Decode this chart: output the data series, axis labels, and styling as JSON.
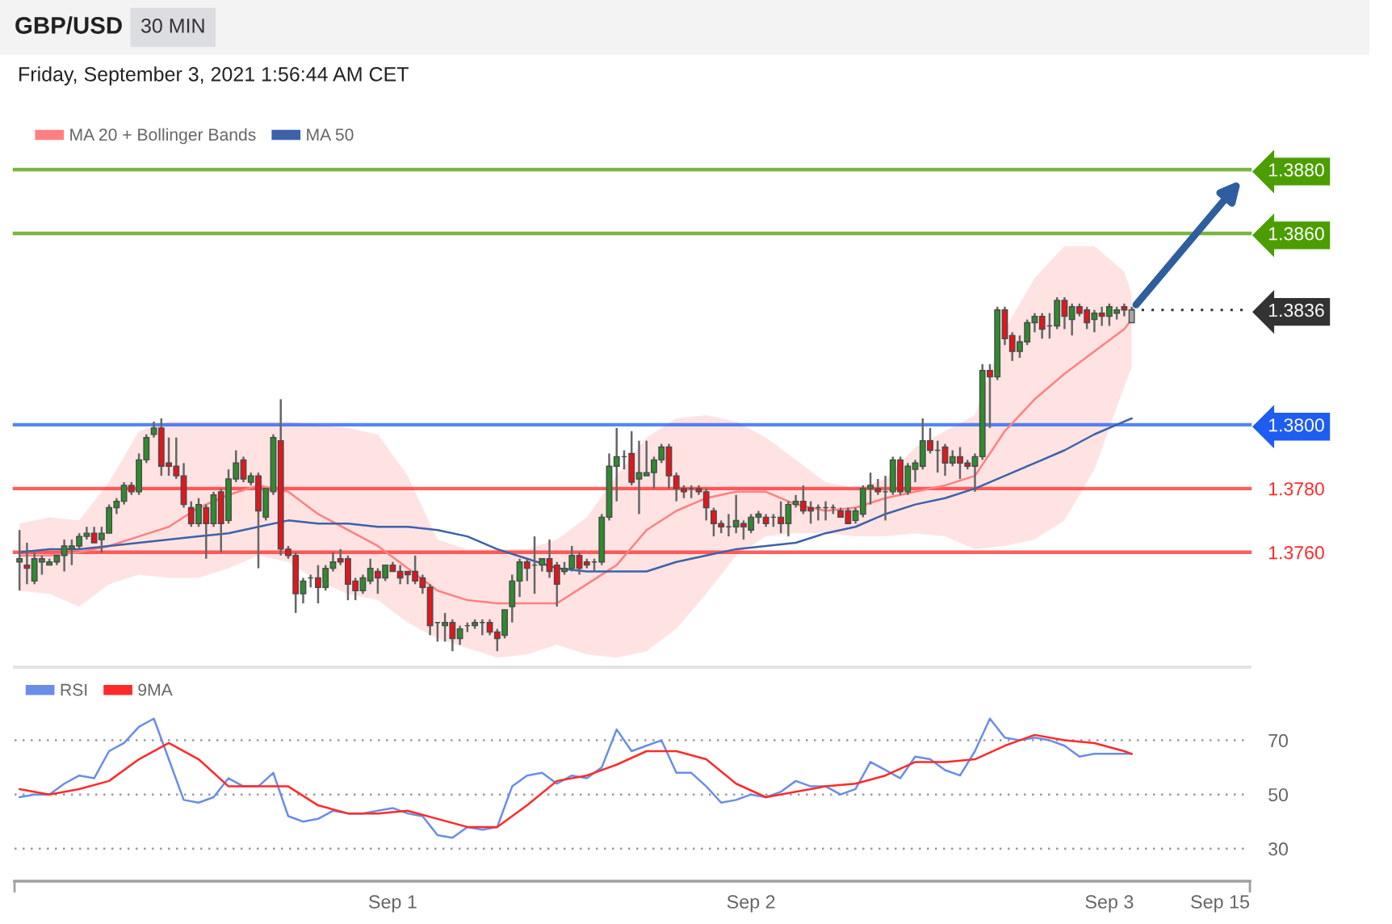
{
  "chart_data": [
    {
      "type": "candlestick",
      "title": "GBP/USD",
      "subtitle": "Friday, September 3, 2021 1:56:44 AM CET",
      "annotations": [
        "30 MIN"
      ],
      "x": [
        "2021-08-30T23:00",
        "2021-08-30T23:30",
        "2021-08-31T00:00",
        "2021-08-31T00:30",
        "2021-08-31T01:00",
        "2021-08-31T01:30",
        "2021-08-31T02:00",
        "2021-08-31T02:30",
        "2021-08-31T03:00",
        "2021-08-31T03:30",
        "2021-08-31T04:00",
        "2021-08-31T04:30",
        "2021-08-31T05:00",
        "2021-08-31T05:30",
        "2021-08-31T06:00",
        "2021-08-31T06:30",
        "2021-08-31T07:00",
        "2021-08-31T07:30",
        "2021-08-31T08:00",
        "2021-08-31T08:30",
        "2021-08-31T09:00",
        "2021-08-31T09:30",
        "2021-08-31T10:00",
        "2021-08-31T10:30",
        "2021-08-31T11:00",
        "2021-08-31T11:30",
        "2021-08-31T12:00",
        "2021-08-31T12:30",
        "2021-08-31T13:00",
        "2021-08-31T13:30",
        "2021-08-31T14:00",
        "2021-08-31T14:30",
        "2021-08-31T15:00",
        "2021-08-31T15:30",
        "2021-08-31T16:00",
        "2021-08-31T16:30",
        "2021-08-31T17:00",
        "2021-08-31T17:30",
        "2021-08-31T18:00",
        "2021-08-31T18:30",
        "2021-08-31T19:00",
        "2021-08-31T19:30",
        "2021-08-31T20:00",
        "2021-08-31T20:30",
        "2021-08-31T21:00",
        "2021-08-31T21:30",
        "2021-08-31T22:00",
        "2021-08-31T22:30",
        "2021-08-31T23:00",
        "2021-08-31T23:30",
        "2021-09-01T00:00",
        "2021-09-01T00:30",
        "2021-09-01T01:00",
        "2021-09-01T01:30",
        "2021-09-01T02:00",
        "2021-09-01T02:30",
        "2021-09-01T03:00",
        "2021-09-01T03:30",
        "2021-09-01T04:00",
        "2021-09-01T04:30",
        "2021-09-01T05:00",
        "2021-09-01T05:30",
        "2021-09-01T06:00",
        "2021-09-01T06:30",
        "2021-09-01T07:00",
        "2021-09-01T07:30",
        "2021-09-01T08:00",
        "2021-09-01T08:30",
        "2021-09-01T09:00",
        "2021-09-01T09:30",
        "2021-09-01T10:00",
        "2021-09-01T10:30",
        "2021-09-01T11:00",
        "2021-09-01T11:30",
        "2021-09-01T12:00",
        "2021-09-01T12:30",
        "2021-09-01T13:00",
        "2021-09-01T13:30",
        "2021-09-01T14:00",
        "2021-09-01T14:30",
        "2021-09-01T15:00",
        "2021-09-01T15:30",
        "2021-09-01T16:00",
        "2021-09-01T16:30",
        "2021-09-01T17:00",
        "2021-09-01T17:30",
        "2021-09-01T18:00",
        "2021-09-01T18:30",
        "2021-09-01T19:00",
        "2021-09-01T19:30",
        "2021-09-01T20:00",
        "2021-09-01T20:30",
        "2021-09-01T21:00",
        "2021-09-01T21:30",
        "2021-09-01T22:00",
        "2021-09-01T22:30",
        "2021-09-01T23:00",
        "2021-09-01T23:30",
        "2021-09-02T00:00",
        "2021-09-02T00:30",
        "2021-09-02T01:00",
        "2021-09-02T01:30",
        "2021-09-02T02:00",
        "2021-09-02T02:30",
        "2021-09-02T03:00",
        "2021-09-02T03:30",
        "2021-09-02T04:00",
        "2021-09-02T04:30",
        "2021-09-02T05:00",
        "2021-09-02T05:30",
        "2021-09-02T06:00",
        "2021-09-02T06:30",
        "2021-09-02T07:00",
        "2021-09-02T07:30",
        "2021-09-02T08:00",
        "2021-09-02T08:30",
        "2021-09-02T09:00",
        "2021-09-02T09:30",
        "2021-09-02T10:00",
        "2021-09-02T10:30",
        "2021-09-02T11:00",
        "2021-09-02T11:30",
        "2021-09-02T12:00",
        "2021-09-02T12:30",
        "2021-09-02T13:00",
        "2021-09-02T13:30",
        "2021-09-02T14:00",
        "2021-09-02T14:30",
        "2021-09-02T15:00",
        "2021-09-02T15:30",
        "2021-09-02T16:00",
        "2021-09-02T16:30",
        "2021-09-02T17:00",
        "2021-09-02T17:30",
        "2021-09-02T18:00",
        "2021-09-02T18:30",
        "2021-09-02T19:00",
        "2021-09-02T19:30",
        "2021-09-02T20:00",
        "2021-09-02T20:30",
        "2021-09-02T21:00",
        "2021-09-02T21:30",
        "2021-09-02T22:00",
        "2021-09-02T22:30",
        "2021-09-02T23:00",
        "2021-09-02T23:30",
        "2021-09-03T00:00",
        "2021-09-03T00:30",
        "2021-09-03T01:00",
        "2021-09-03T01:30"
      ],
      "ohlc": [
        [
          1.3757,
          1.3767,
          1.3748,
          1.3758
        ],
        [
          1.3756,
          1.3763,
          1.375,
          1.3755
        ],
        [
          1.3751,
          1.376,
          1.375,
          1.3758
        ],
        [
          1.3757,
          1.3759,
          1.3753,
          1.3758
        ],
        [
          1.3756,
          1.3758,
          1.3756,
          1.3757
        ],
        [
          1.3757,
          1.3759,
          1.3756,
          1.3759
        ],
        [
          1.3759,
          1.3764,
          1.3754,
          1.3762
        ],
        [
          1.3761,
          1.3764,
          1.3756,
          1.3762
        ],
        [
          1.3762,
          1.3766,
          1.3761,
          1.3765
        ],
        [
          1.3765,
          1.3768,
          1.3764,
          1.3766
        ],
        [
          1.3766,
          1.3768,
          1.3763,
          1.3763
        ],
        [
          1.3764,
          1.3768,
          1.376,
          1.3766
        ],
        [
          1.3766,
          1.3775,
          1.3766,
          1.3774
        ],
        [
          1.3774,
          1.3777,
          1.3772,
          1.3776
        ],
        [
          1.3776,
          1.3782,
          1.3775,
          1.3781
        ],
        [
          1.3781,
          1.3782,
          1.3778,
          1.3779
        ],
        [
          1.3779,
          1.3791,
          1.3778,
          1.3789
        ],
        [
          1.3789,
          1.3797,
          1.3788,
          1.3796
        ],
        [
          1.3797,
          1.3801,
          1.3796,
          1.3799
        ],
        [
          1.3799,
          1.3802,
          1.3784,
          1.3787
        ],
        [
          1.3788,
          1.3796,
          1.3784,
          1.3787
        ],
        [
          1.3787,
          1.3796,
          1.3783,
          1.3784
        ],
        [
          1.3784,
          1.3788,
          1.3774,
          1.3775
        ],
        [
          1.3774,
          1.3776,
          1.3768,
          1.3769
        ],
        [
          1.3769,
          1.3777,
          1.3768,
          1.3775
        ],
        [
          1.3774,
          1.3775,
          1.3758,
          1.3769
        ],
        [
          1.3769,
          1.3779,
          1.3768,
          1.3778
        ],
        [
          1.3779,
          1.378,
          1.376,
          1.3769
        ],
        [
          1.377,
          1.3786,
          1.3769,
          1.3783
        ],
        [
          1.3783,
          1.3792,
          1.3782,
          1.3788
        ],
        [
          1.3789,
          1.379,
          1.3782,
          1.3783
        ],
        [
          1.3782,
          1.3785,
          1.3781,
          1.3784
        ],
        [
          1.3784,
          1.3785,
          1.3755,
          1.3773
        ],
        [
          1.3771,
          1.378,
          1.377,
          1.378
        ],
        [
          1.3779,
          1.3797,
          1.3778,
          1.3796
        ],
        [
          1.3795,
          1.3808,
          1.3759,
          1.3761
        ],
        [
          1.3761,
          1.3762,
          1.3758,
          1.3759
        ],
        [
          1.3759,
          1.376,
          1.3741,
          1.3747
        ],
        [
          1.3747,
          1.3752,
          1.3744,
          1.3751
        ],
        [
          1.3752,
          1.3753,
          1.3749,
          1.3752
        ],
        [
          1.3752,
          1.3756,
          1.3744,
          1.3749
        ],
        [
          1.3749,
          1.3756,
          1.3748,
          1.3755
        ],
        [
          1.3755,
          1.376,
          1.3754,
          1.3757
        ],
        [
          1.3758,
          1.3761,
          1.3756,
          1.3757
        ],
        [
          1.3758,
          1.3759,
          1.3745,
          1.375
        ],
        [
          1.3751,
          1.3752,
          1.3745,
          1.3748
        ],
        [
          1.3748,
          1.3753,
          1.3747,
          1.3752
        ],
        [
          1.3751,
          1.3758,
          1.375,
          1.3755
        ],
        [
          1.3754,
          1.3755,
          1.3747,
          1.3752
        ],
        [
          1.3752,
          1.3756,
          1.3751,
          1.3756
        ],
        [
          1.3756,
          1.3757,
          1.3754,
          1.3754
        ],
        [
          1.3754,
          1.3756,
          1.375,
          1.3752
        ],
        [
          1.3754,
          1.3754,
          1.375,
          1.3753
        ],
        [
          1.3754,
          1.3759,
          1.375,
          1.3751
        ],
        [
          1.3752,
          1.3753,
          1.3747,
          1.3749
        ],
        [
          1.3749,
          1.375,
          1.3734,
          1.3737
        ],
        [
          1.3738,
          1.3738,
          1.3732,
          1.3738
        ],
        [
          1.3737,
          1.3741,
          1.3732,
          1.3738
        ],
        [
          1.3738,
          1.3739,
          1.3729,
          1.3733
        ],
        [
          1.3733,
          1.3737,
          1.3731,
          1.3736
        ],
        [
          1.3737,
          1.3738,
          1.3735,
          1.3737
        ],
        [
          1.3737,
          1.3739,
          1.3736,
          1.3738
        ],
        [
          1.3738,
          1.3739,
          1.3734,
          1.3738
        ],
        [
          1.3738,
          1.3739,
          1.3734,
          1.3735
        ],
        [
          1.3735,
          1.3736,
          1.3729,
          1.3733
        ],
        [
          1.3734,
          1.3742,
          1.3733,
          1.3742
        ],
        [
          1.3743,
          1.3753,
          1.3738,
          1.3751
        ],
        [
          1.3751,
          1.3758,
          1.3746,
          1.3757
        ],
        [
          1.3757,
          1.3758,
          1.3751,
          1.3755
        ],
        [
          1.3756,
          1.3765,
          1.3747,
          1.3756
        ],
        [
          1.3756,
          1.3758,
          1.3754,
          1.3758
        ],
        [
          1.3758,
          1.3764,
          1.3752,
          1.3754
        ],
        [
          1.3756,
          1.3757,
          1.3743,
          1.375
        ],
        [
          1.3754,
          1.3757,
          1.3753,
          1.3755
        ],
        [
          1.3755,
          1.3762,
          1.3754,
          1.3759
        ],
        [
          1.3759,
          1.376,
          1.3753,
          1.3755
        ],
        [
          1.3757,
          1.3758,
          1.3755,
          1.3756
        ],
        [
          1.3757,
          1.3758,
          1.3754,
          1.3757
        ],
        [
          1.3757,
          1.3772,
          1.3756,
          1.3771
        ],
        [
          1.3771,
          1.3791,
          1.377,
          1.3787
        ],
        [
          1.3787,
          1.3799,
          1.3776,
          1.379
        ],
        [
          1.379,
          1.3792,
          1.3786,
          1.379
        ],
        [
          1.3791,
          1.3798,
          1.3781,
          1.3782
        ],
        [
          1.3783,
          1.3795,
          1.3772,
          1.3785
        ],
        [
          1.3784,
          1.3795,
          1.3784,
          1.3785
        ],
        [
          1.3785,
          1.379,
          1.378,
          1.3789
        ],
        [
          1.3789,
          1.3794,
          1.3788,
          1.3793
        ],
        [
          1.3793,
          1.3794,
          1.378,
          1.3784
        ],
        [
          1.3784,
          1.3785,
          1.3776,
          1.378
        ],
        [
          1.378,
          1.3781,
          1.3777,
          1.3779
        ],
        [
          1.378,
          1.3781,
          1.3777,
          1.378
        ],
        [
          1.378,
          1.3781,
          1.3778,
          1.3779
        ],
        [
          1.3779,
          1.378,
          1.377,
          1.3774
        ],
        [
          1.3773,
          1.3774,
          1.3765,
          1.3769
        ],
        [
          1.3769,
          1.377,
          1.3766,
          1.3768
        ],
        [
          1.3768,
          1.3772,
          1.3765,
          1.3768
        ],
        [
          1.3768,
          1.3778,
          1.3766,
          1.377
        ],
        [
          1.3769,
          1.377,
          1.3764,
          1.3768
        ],
        [
          1.3767,
          1.3772,
          1.3766,
          1.3771
        ],
        [
          1.3771,
          1.3773,
          1.3769,
          1.3772
        ],
        [
          1.3771,
          1.3772,
          1.3768,
          1.3769
        ],
        [
          1.3771,
          1.3772,
          1.3768,
          1.3771
        ],
        [
          1.3771,
          1.3776,
          1.3766,
          1.3769
        ],
        [
          1.3769,
          1.3776,
          1.3765,
          1.3775
        ],
        [
          1.3775,
          1.3778,
          1.3774,
          1.3776
        ],
        [
          1.3776,
          1.3781,
          1.3772,
          1.3773
        ],
        [
          1.3774,
          1.3776,
          1.3769,
          1.3773
        ],
        [
          1.3774,
          1.3775,
          1.377,
          1.3774
        ],
        [
          1.3774,
          1.3776,
          1.377,
          1.3774
        ],
        [
          1.3774,
          1.3775,
          1.3772,
          1.3774
        ],
        [
          1.3773,
          1.3774,
          1.3771,
          1.3771
        ],
        [
          1.3773,
          1.3774,
          1.3769,
          1.3769
        ],
        [
          1.377,
          1.3774,
          1.3769,
          1.3773
        ],
        [
          1.3772,
          1.3781,
          1.3771,
          1.378
        ],
        [
          1.378,
          1.3785,
          1.3775,
          1.3781
        ],
        [
          1.378,
          1.3783,
          1.3778,
          1.3779
        ],
        [
          1.3779,
          1.3784,
          1.377,
          1.3779
        ],
        [
          1.3779,
          1.379,
          1.3778,
          1.3789
        ],
        [
          1.3789,
          1.379,
          1.3778,
          1.3779
        ],
        [
          1.3779,
          1.3788,
          1.3778,
          1.3787
        ],
        [
          1.3786,
          1.3789,
          1.3782,
          1.3788
        ],
        [
          1.3787,
          1.3802,
          1.3786,
          1.3795
        ],
        [
          1.3795,
          1.3799,
          1.3791,
          1.3792
        ],
        [
          1.3792,
          1.3795,
          1.3785,
          1.3792
        ],
        [
          1.3793,
          1.3794,
          1.3784,
          1.3788
        ],
        [
          1.3788,
          1.3792,
          1.3787,
          1.379
        ],
        [
          1.379,
          1.3793,
          1.3783,
          1.3788
        ],
        [
          1.3788,
          1.3789,
          1.3786,
          1.3787
        ],
        [
          1.3787,
          1.3791,
          1.3779,
          1.379
        ],
        [
          1.379,
          1.3819,
          1.3789,
          1.3817
        ],
        [
          1.3817,
          1.3819,
          1.3799,
          1.3815
        ],
        [
          1.3815,
          1.3837,
          1.3814,
          1.3836
        ],
        [
          1.3836,
          1.3837,
          1.3825,
          1.3827
        ],
        [
          1.3828,
          1.3829,
          1.382,
          1.3823
        ],
        [
          1.3823,
          1.3828,
          1.3821,
          1.3826
        ],
        [
          1.3826,
          1.3833,
          1.3825,
          1.3832
        ],
        [
          1.3832,
          1.3835,
          1.3829,
          1.3834
        ],
        [
          1.3834,
          1.3835,
          1.3827,
          1.383
        ],
        [
          1.3831,
          1.3835,
          1.3827,
          1.3831
        ],
        [
          1.3831,
          1.384,
          1.383,
          1.3839
        ],
        [
          1.3839,
          1.384,
          1.383,
          1.3834
        ],
        [
          1.3833,
          1.3838,
          1.3828,
          1.3837
        ],
        [
          1.3837,
          1.3838,
          1.3834,
          1.3835
        ],
        [
          1.3836,
          1.3837,
          1.383,
          1.3832
        ],
        [
          1.3833,
          1.3836,
          1.3829,
          1.3835
        ],
        [
          1.3835,
          1.3837,
          1.3831,
          1.3834
        ],
        [
          1.3834,
          1.3838,
          1.3831,
          1.3837
        ],
        [
          1.3835,
          1.3837,
          1.3833,
          1.3836
        ],
        [
          1.3837,
          1.3838,
          1.3834,
          1.3836
        ],
        [
          1.3832,
          1.3837,
          1.3832,
          1.3836
        ]
      ],
      "colors": [
        "#2e8b2e",
        "#e3161c",
        "#2e8b2e",
        "#2e8b2e",
        "#2e8b2e",
        "#2e8b2e",
        "#2e8b2e",
        "#2e8b2e",
        "#2e8b2e",
        "#2e8b2e",
        "#e3161c",
        "#2e8b2e",
        "#2e8b2e",
        "#2e8b2e",
        "#2e8b2e",
        "#e3161c",
        "#2e8b2e",
        "#2e8b2e",
        "#2e8b2e",
        "#e3161c",
        "#e3161c",
        "#e3161c",
        "#e3161c",
        "#e3161c",
        "#2e8b2e",
        "#e3161c",
        "#2e8b2e",
        "#e3161c",
        "#2e8b2e",
        "#2e8b2e",
        "#e3161c",
        "#2e8b2e",
        "#e3161c",
        "#2e8b2e",
        "#2e8b2e",
        "#e3161c",
        "#e3161c",
        "#e3161c",
        "#2e8b2e",
        "#555555",
        "#e3161c",
        "#2e8b2e",
        "#2e8b2e",
        "#e3161c",
        "#e3161c",
        "#e3161c",
        "#2e8b2e",
        "#2e8b2e",
        "#e3161c",
        "#2e8b2e",
        "#e3161c",
        "#e3161c",
        "#e3161c",
        "#e3161c",
        "#e3161c",
        "#e3161c",
        "#555555",
        "#2e8b2e",
        "#e3161c",
        "#2e8b2e",
        "#555555",
        "#2e8b2e",
        "#555555",
        "#e3161c",
        "#e3161c",
        "#2e8b2e",
        "#2e8b2e",
        "#2e8b2e",
        "#e3161c",
        "#555555",
        "#2e8b2e",
        "#e3161c",
        "#e3161c",
        "#2e8b2e",
        "#2e8b2e",
        "#e3161c",
        "#e3161c",
        "#555555",
        "#2e8b2e",
        "#2e8b2e",
        "#2e8b2e",
        "#555555",
        "#e3161c",
        "#2e8b2e",
        "#2e8b2e",
        "#2e8b2e",
        "#2e8b2e",
        "#e3161c",
        "#e3161c",
        "#e3161c",
        "#555555",
        "#e3161c",
        "#e3161c",
        "#e3161c",
        "#e3161c",
        "#555555",
        "#2e8b2e",
        "#e3161c",
        "#2e8b2e",
        "#2e8b2e",
        "#e3161c",
        "#555555",
        "#e3161c",
        "#2e8b2e",
        "#2e8b2e",
        "#e3161c",
        "#e3161c",
        "#555555",
        "#555555",
        "#555555",
        "#e3161c",
        "#e3161c",
        "#2e8b2e",
        "#2e8b2e",
        "#2e8b2e",
        "#e3161c",
        "#555555",
        "#2e8b2e",
        "#e3161c",
        "#2e8b2e",
        "#2e8b2e",
        "#2e8b2e",
        "#e3161c",
        "#555555",
        "#e3161c",
        "#2e8b2e",
        "#e3161c",
        "#e3161c",
        "#2e8b2e",
        "#2e8b2e",
        "#e3161c",
        "#2e8b2e",
        "#e3161c",
        "#e3161c",
        "#2e8b2e",
        "#2e8b2e",
        "#2e8b2e",
        "#e3161c",
        "#555555",
        "#2e8b2e",
        "#e3161c",
        "#2e8b2e",
        "#e3161c",
        "#e3161c",
        "#2e8b2e",
        "#e3161c",
        "#2e8b2e",
        "#2e8b2e",
        "#e3161c",
        "#a6a6a6"
      ],
      "series": [
        {
          "name": "MA 20 + Bollinger Bands",
          "type": "line",
          "color": "#ff8080",
          "x": [
            "2021-08-30T23:00",
            "2021-08-31T01:00",
            "2021-08-31T03:00",
            "2021-08-31T05:00",
            "2021-08-31T07:00",
            "2021-08-31T09:00",
            "2021-08-31T11:00",
            "2021-08-31T13:00",
            "2021-08-31T15:00",
            "2021-08-31T17:00",
            "2021-08-31T19:00",
            "2021-08-31T21:00",
            "2021-08-31T23:00",
            "2021-09-01T01:00",
            "2021-09-01T03:00",
            "2021-09-01T05:00",
            "2021-09-01T07:00",
            "2021-09-01T09:00",
            "2021-09-01T11:00",
            "2021-09-01T13:00",
            "2021-09-01T15:00",
            "2021-09-01T17:00",
            "2021-09-01T19:00",
            "2021-09-01T21:00",
            "2021-09-01T23:00",
            "2021-09-02T01:00",
            "2021-09-02T03:00",
            "2021-09-02T05:00",
            "2021-09-02T07:00",
            "2021-09-02T09:00",
            "2021-09-02T11:00",
            "2021-09-02T13:00",
            "2021-09-02T15:00",
            "2021-09-02T17:00",
            "2021-09-02T19:00",
            "2021-09-02T21:00",
            "2021-09-02T23:00",
            "2021-09-03T01:00",
            "2021-09-03T01:30"
          ],
          "values": [
            1.3759,
            1.3759,
            1.376,
            1.3762,
            1.3765,
            1.3768,
            1.3774,
            1.3778,
            1.3781,
            1.3779,
            1.3772,
            1.3767,
            1.3762,
            1.3755,
            1.3748,
            1.3745,
            1.3744,
            1.3744,
            1.3744,
            1.375,
            1.3756,
            1.3767,
            1.3773,
            1.3777,
            1.3779,
            1.3779,
            1.3775,
            1.3773,
            1.3774,
            1.3777,
            1.3779,
            1.3781,
            1.3784,
            1.3798,
            1.3808,
            1.3816,
            1.3823,
            1.383,
            1.3833
          ],
          "lower": [
            1.3748,
            1.3747,
            1.3743,
            1.375,
            1.3753,
            1.3752,
            1.3752,
            1.3755,
            1.3759,
            1.3757,
            1.3751,
            1.3747,
            1.3745,
            1.3738,
            1.3733,
            1.373,
            1.3727,
            1.3728,
            1.3731,
            1.3728,
            1.3727,
            1.3729,
            1.3736,
            1.3747,
            1.3759,
            1.3765,
            1.3766,
            1.3766,
            1.3765,
            1.3765,
            1.3766,
            1.3765,
            1.3761,
            1.3762,
            1.3764,
            1.377,
            1.3786,
            1.3812,
            1.3818
          ],
          "upper": [
            1.3769,
            1.3771,
            1.377,
            1.3782,
            1.3798,
            1.3801,
            1.3801,
            1.3801,
            1.3801,
            1.3801,
            1.38,
            1.3799,
            1.3797,
            1.3784,
            1.3764,
            1.3761,
            1.3761,
            1.3761,
            1.3764,
            1.3771,
            1.3784,
            1.3796,
            1.3802,
            1.3803,
            1.3801,
            1.3796,
            1.3789,
            1.3782,
            1.378,
            1.3783,
            1.3793,
            1.3798,
            1.3803,
            1.383,
            1.3846,
            1.3856,
            1.3856,
            1.3848,
            1.3841
          ]
        },
        {
          "name": "MA 50",
          "type": "line",
          "color": "#3d62a8",
          "x": [
            "2021-08-30T23:00",
            "2021-08-31T01:00",
            "2021-08-31T03:00",
            "2021-08-31T05:00",
            "2021-08-31T07:00",
            "2021-08-31T09:00",
            "2021-08-31T11:00",
            "2021-08-31T13:00",
            "2021-08-31T15:00",
            "2021-08-31T17:00",
            "2021-08-31T19:00",
            "2021-08-31T21:00",
            "2021-08-31T23:00",
            "2021-09-01T01:00",
            "2021-09-01T03:00",
            "2021-09-01T05:00",
            "2021-09-01T07:00",
            "2021-09-01T09:00",
            "2021-09-01T11:00",
            "2021-09-01T13:00",
            "2021-09-01T15:00",
            "2021-09-01T17:00",
            "2021-09-01T19:00",
            "2021-09-01T21:00",
            "2021-09-01T23:00",
            "2021-09-02T01:00",
            "2021-09-02T03:00",
            "2021-09-02T05:00",
            "2021-09-02T07:00",
            "2021-09-02T09:00",
            "2021-09-02T11:00",
            "2021-09-02T13:00",
            "2021-09-02T15:00",
            "2021-09-02T17:00",
            "2021-09-02T19:00",
            "2021-09-02T21:00",
            "2021-09-02T23:00",
            "2021-09-03T01:00",
            "2021-09-03T01:30"
          ],
          "values": [
            1.376,
            1.3761,
            1.3761,
            1.3762,
            1.3763,
            1.3764,
            1.3765,
            1.3766,
            1.3768,
            1.377,
            1.3769,
            1.3769,
            1.3768,
            1.3768,
            1.3767,
            1.3765,
            1.3761,
            1.3758,
            1.3755,
            1.3754,
            1.3754,
            1.3754,
            1.3757,
            1.3759,
            1.3761,
            1.3762,
            1.3763,
            1.3766,
            1.3768,
            1.3772,
            1.3775,
            1.3777,
            1.378,
            1.3784,
            1.3788,
            1.3792,
            1.3797,
            1.3801,
            1.3802
          ]
        }
      ],
      "ref_lines": [
        {
          "axis": "y",
          "value": 1.388,
          "color": "#4c9e00",
          "line_style": "solid"
        },
        {
          "axis": "y",
          "value": 1.386,
          "color": "#4c9e00",
          "line_style": "solid"
        },
        {
          "axis": "y",
          "value": 1.3836,
          "color": "#333333",
          "line_style": "dotted"
        },
        {
          "axis": "y",
          "value": 1.38,
          "color": "#1f5cf0",
          "line_style": "solid"
        },
        {
          "axis": "y",
          "value": 1.378,
          "color": "#ff2a2a",
          "line_style": "solid"
        },
        {
          "axis": "y",
          "value": 1.376,
          "color": "#ff2a2a",
          "line_style": "solid"
        }
      ],
      "xlim": [
        "2021-08-30T22:40",
        "2021-09-03T09:25"
      ],
      "ylim": [
        1.3724,
        1.388
      ],
      "yticks": [
        {
          "value": 1.388,
          "label": "1.3880"
        },
        {
          "value": 1.386,
          "label": "1.3860"
        },
        {
          "value": 1.3836,
          "label": "1.3836"
        },
        {
          "value": 1.38,
          "label": "1.3800"
        },
        {
          "value": 1.378,
          "label": "1.3780"
        },
        {
          "value": 1.376,
          "label": "1.3760"
        }
      ],
      "tick_labels": "y",
      "legend": "top left"
    },
    {
      "type": "line",
      "annotations": [
        "Sep 15"
      ],
      "series": [
        {
          "name": "RSI",
          "color": "#6a8de6",
          "x": [
            "2021-08-30T23:00",
            "2021-08-31T00:00",
            "2021-08-31T01:00",
            "2021-08-31T02:00",
            "2021-08-31T03:00",
            "2021-08-31T04:00",
            "2021-08-31T05:00",
            "2021-08-31T06:00",
            "2021-08-31T07:00",
            "2021-08-31T08:00",
            "2021-08-31T09:00",
            "2021-08-31T10:00",
            "2021-08-31T11:00",
            "2021-08-31T12:00",
            "2021-08-31T13:00",
            "2021-08-31T14:00",
            "2021-08-31T15:00",
            "2021-08-31T16:00",
            "2021-08-31T17:00",
            "2021-08-31T18:00",
            "2021-08-31T19:00",
            "2021-08-31T20:00",
            "2021-08-31T21:00",
            "2021-08-31T22:00",
            "2021-08-31T23:00",
            "2021-09-01T00:00",
            "2021-09-01T01:00",
            "2021-09-01T02:00",
            "2021-09-01T03:00",
            "2021-09-01T04:00",
            "2021-09-01T05:00",
            "2021-09-01T06:00",
            "2021-09-01T07:00",
            "2021-09-01T08:00",
            "2021-09-01T09:00",
            "2021-09-01T10:00",
            "2021-09-01T11:00",
            "2021-09-01T12:00",
            "2021-09-01T13:00",
            "2021-09-01T14:00",
            "2021-09-01T15:00",
            "2021-09-01T16:00",
            "2021-09-01T17:00",
            "2021-09-01T18:00",
            "2021-09-01T19:00",
            "2021-09-01T20:00",
            "2021-09-01T21:00",
            "2021-09-01T22:00",
            "2021-09-01T23:00",
            "2021-09-02T00:00",
            "2021-09-02T01:00",
            "2021-09-02T02:00",
            "2021-09-02T03:00",
            "2021-09-02T04:00",
            "2021-09-02T05:00",
            "2021-09-02T06:00",
            "2021-09-02T07:00",
            "2021-09-02T08:00",
            "2021-09-02T09:00",
            "2021-09-02T10:00",
            "2021-09-02T11:00",
            "2021-09-02T12:00",
            "2021-09-02T13:00",
            "2021-09-02T14:00",
            "2021-09-02T15:00",
            "2021-09-02T16:00",
            "2021-09-02T17:00",
            "2021-09-02T18:00",
            "2021-09-02T19:00",
            "2021-09-02T20:00",
            "2021-09-02T21:00",
            "2021-09-02T22:00",
            "2021-09-02T23:00",
            "2021-09-03T00:00",
            "2021-09-03T01:00",
            "2021-09-03T01:30"
          ],
          "values": [
            49,
            50,
            50,
            54,
            57,
            56,
            66,
            69,
            75,
            78,
            63,
            48,
            47,
            49,
            56,
            53,
            53,
            58,
            42,
            40,
            41,
            44,
            43,
            43,
            44,
            45,
            43,
            42,
            35,
            34,
            38,
            37,
            38,
            53,
            57,
            58,
            54,
            57,
            56,
            60,
            74,
            66,
            68,
            70,
            58,
            58,
            53,
            47,
            48,
            50,
            49,
            51,
            55,
            53,
            53,
            50,
            52,
            62,
            59,
            56,
            64,
            63,
            59,
            57,
            66,
            78,
            71,
            70,
            71,
            70,
            68,
            64,
            65,
            65,
            65,
            65
          ]
        },
        {
          "name": "9MA",
          "color": "#ff2a2a",
          "x": [
            "2021-08-30T23:00",
            "2021-08-31T01:00",
            "2021-08-31T03:00",
            "2021-08-31T05:00",
            "2021-08-31T07:00",
            "2021-08-31T09:00",
            "2021-08-31T11:00",
            "2021-08-31T13:00",
            "2021-08-31T15:00",
            "2021-08-31T17:00",
            "2021-08-31T19:00",
            "2021-08-31T21:00",
            "2021-08-31T23:00",
            "2021-09-01T01:00",
            "2021-09-01T03:00",
            "2021-09-01T05:00",
            "2021-09-01T07:00",
            "2021-09-01T09:00",
            "2021-09-01T11:00",
            "2021-09-01T13:00",
            "2021-09-01T15:00",
            "2021-09-01T17:00",
            "2021-09-01T19:00",
            "2021-09-01T21:00",
            "2021-09-01T23:00",
            "2021-09-02T01:00",
            "2021-09-02T03:00",
            "2021-09-02T05:00",
            "2021-09-02T07:00",
            "2021-09-02T09:00",
            "2021-09-02T11:00",
            "2021-09-02T13:00",
            "2021-09-02T15:00",
            "2021-09-02T17:00",
            "2021-09-02T19:00",
            "2021-09-02T21:00",
            "2021-09-02T23:00",
            "2021-09-03T01:00",
            "2021-09-03T01:30"
          ],
          "values": [
            52,
            50,
            52,
            55,
            63,
            69,
            63,
            53,
            53,
            53,
            46,
            43,
            43,
            44,
            41,
            38,
            38,
            46,
            55,
            57,
            61,
            66,
            66,
            63,
            54,
            49,
            51,
            53,
            54,
            57,
            62,
            62,
            63,
            68,
            72,
            70,
            69,
            66,
            65
          ]
        }
      ],
      "xlim": [
        "2021-08-30T22:40",
        "2021-09-03T09:25"
      ],
      "xticks": [
        {
          "value": "2021-08-30T22:40",
          "label": null
        },
        {
          "value": "2021-09-01T00:00",
          "label": "Sep 1"
        },
        {
          "value": "2021-09-02T00:00",
          "label": "Sep 2"
        },
        {
          "value": "2021-09-03T00:00",
          "label": "Sep 3"
        },
        {
          "value": "2021-09-03T09:25",
          "label": null
        }
      ],
      "ylim": [
        18,
        97
      ],
      "yticks": [
        30,
        50,
        70
      ],
      "grid": "y",
      "legend": "top left"
    }
  ]
}
